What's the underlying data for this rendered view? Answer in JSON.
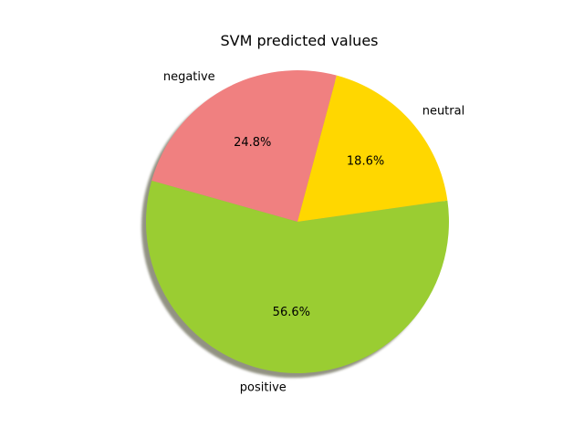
{
  "chart_data": {
    "type": "pie",
    "title": "SVM predicted values",
    "labels": [
      "negative",
      "positive",
      "neutral"
    ],
    "values": [
      24.8,
      56.6,
      18.6
    ],
    "percent_labels": [
      "24.8%",
      "56.6%",
      "18.6%"
    ],
    "colors": [
      "#f08080",
      "#9acd32",
      "#ffd700"
    ],
    "start_angle_deg": 75,
    "counterclockwise": true,
    "shadow": true
  }
}
